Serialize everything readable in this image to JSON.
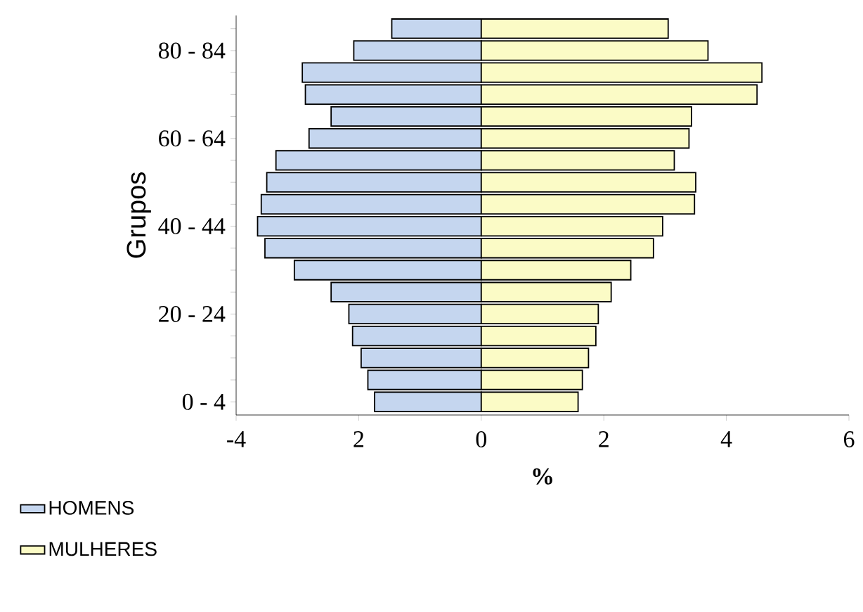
{
  "chart_data": {
    "type": "bar",
    "orientation": "horizontal",
    "xlabel": "%",
    "ylabel": "Grupos",
    "stacked": true,
    "categories": [
      null,
      "80 - 84",
      null,
      null,
      null,
      "60 - 64",
      null,
      null,
      null,
      "40 - 44",
      null,
      null,
      null,
      "20 - 24",
      null,
      null,
      null,
      "0 - 4"
    ],
    "series": [
      {
        "name": "HOMENS",
        "color": "#c5d6ef",
        "values": [
          -1.46,
          -2.08,
          -2.92,
          -2.87,
          -2.45,
          -2.81,
          -3.35,
          -3.5,
          -3.59,
          -3.65,
          -3.53,
          -3.05,
          -2.45,
          -2.16,
          -2.1,
          -1.96,
          -1.85,
          -1.74
        ]
      },
      {
        "name": "MULHERES",
        "color": "#fbfbc6",
        "values": [
          3.05,
          3.7,
          4.58,
          4.5,
          3.43,
          3.39,
          3.15,
          3.5,
          3.48,
          2.96,
          2.81,
          2.44,
          2.12,
          1.91,
          1.87,
          1.75,
          1.65,
          1.58
        ]
      }
    ],
    "xlim": [
      -4,
      6
    ],
    "xticks": [
      {
        "value": -4,
        "label": "-4"
      },
      {
        "value": -2,
        "label": "2"
      },
      0,
      2,
      4,
      6
    ],
    "grid": false,
    "legend": "bottom left"
  }
}
